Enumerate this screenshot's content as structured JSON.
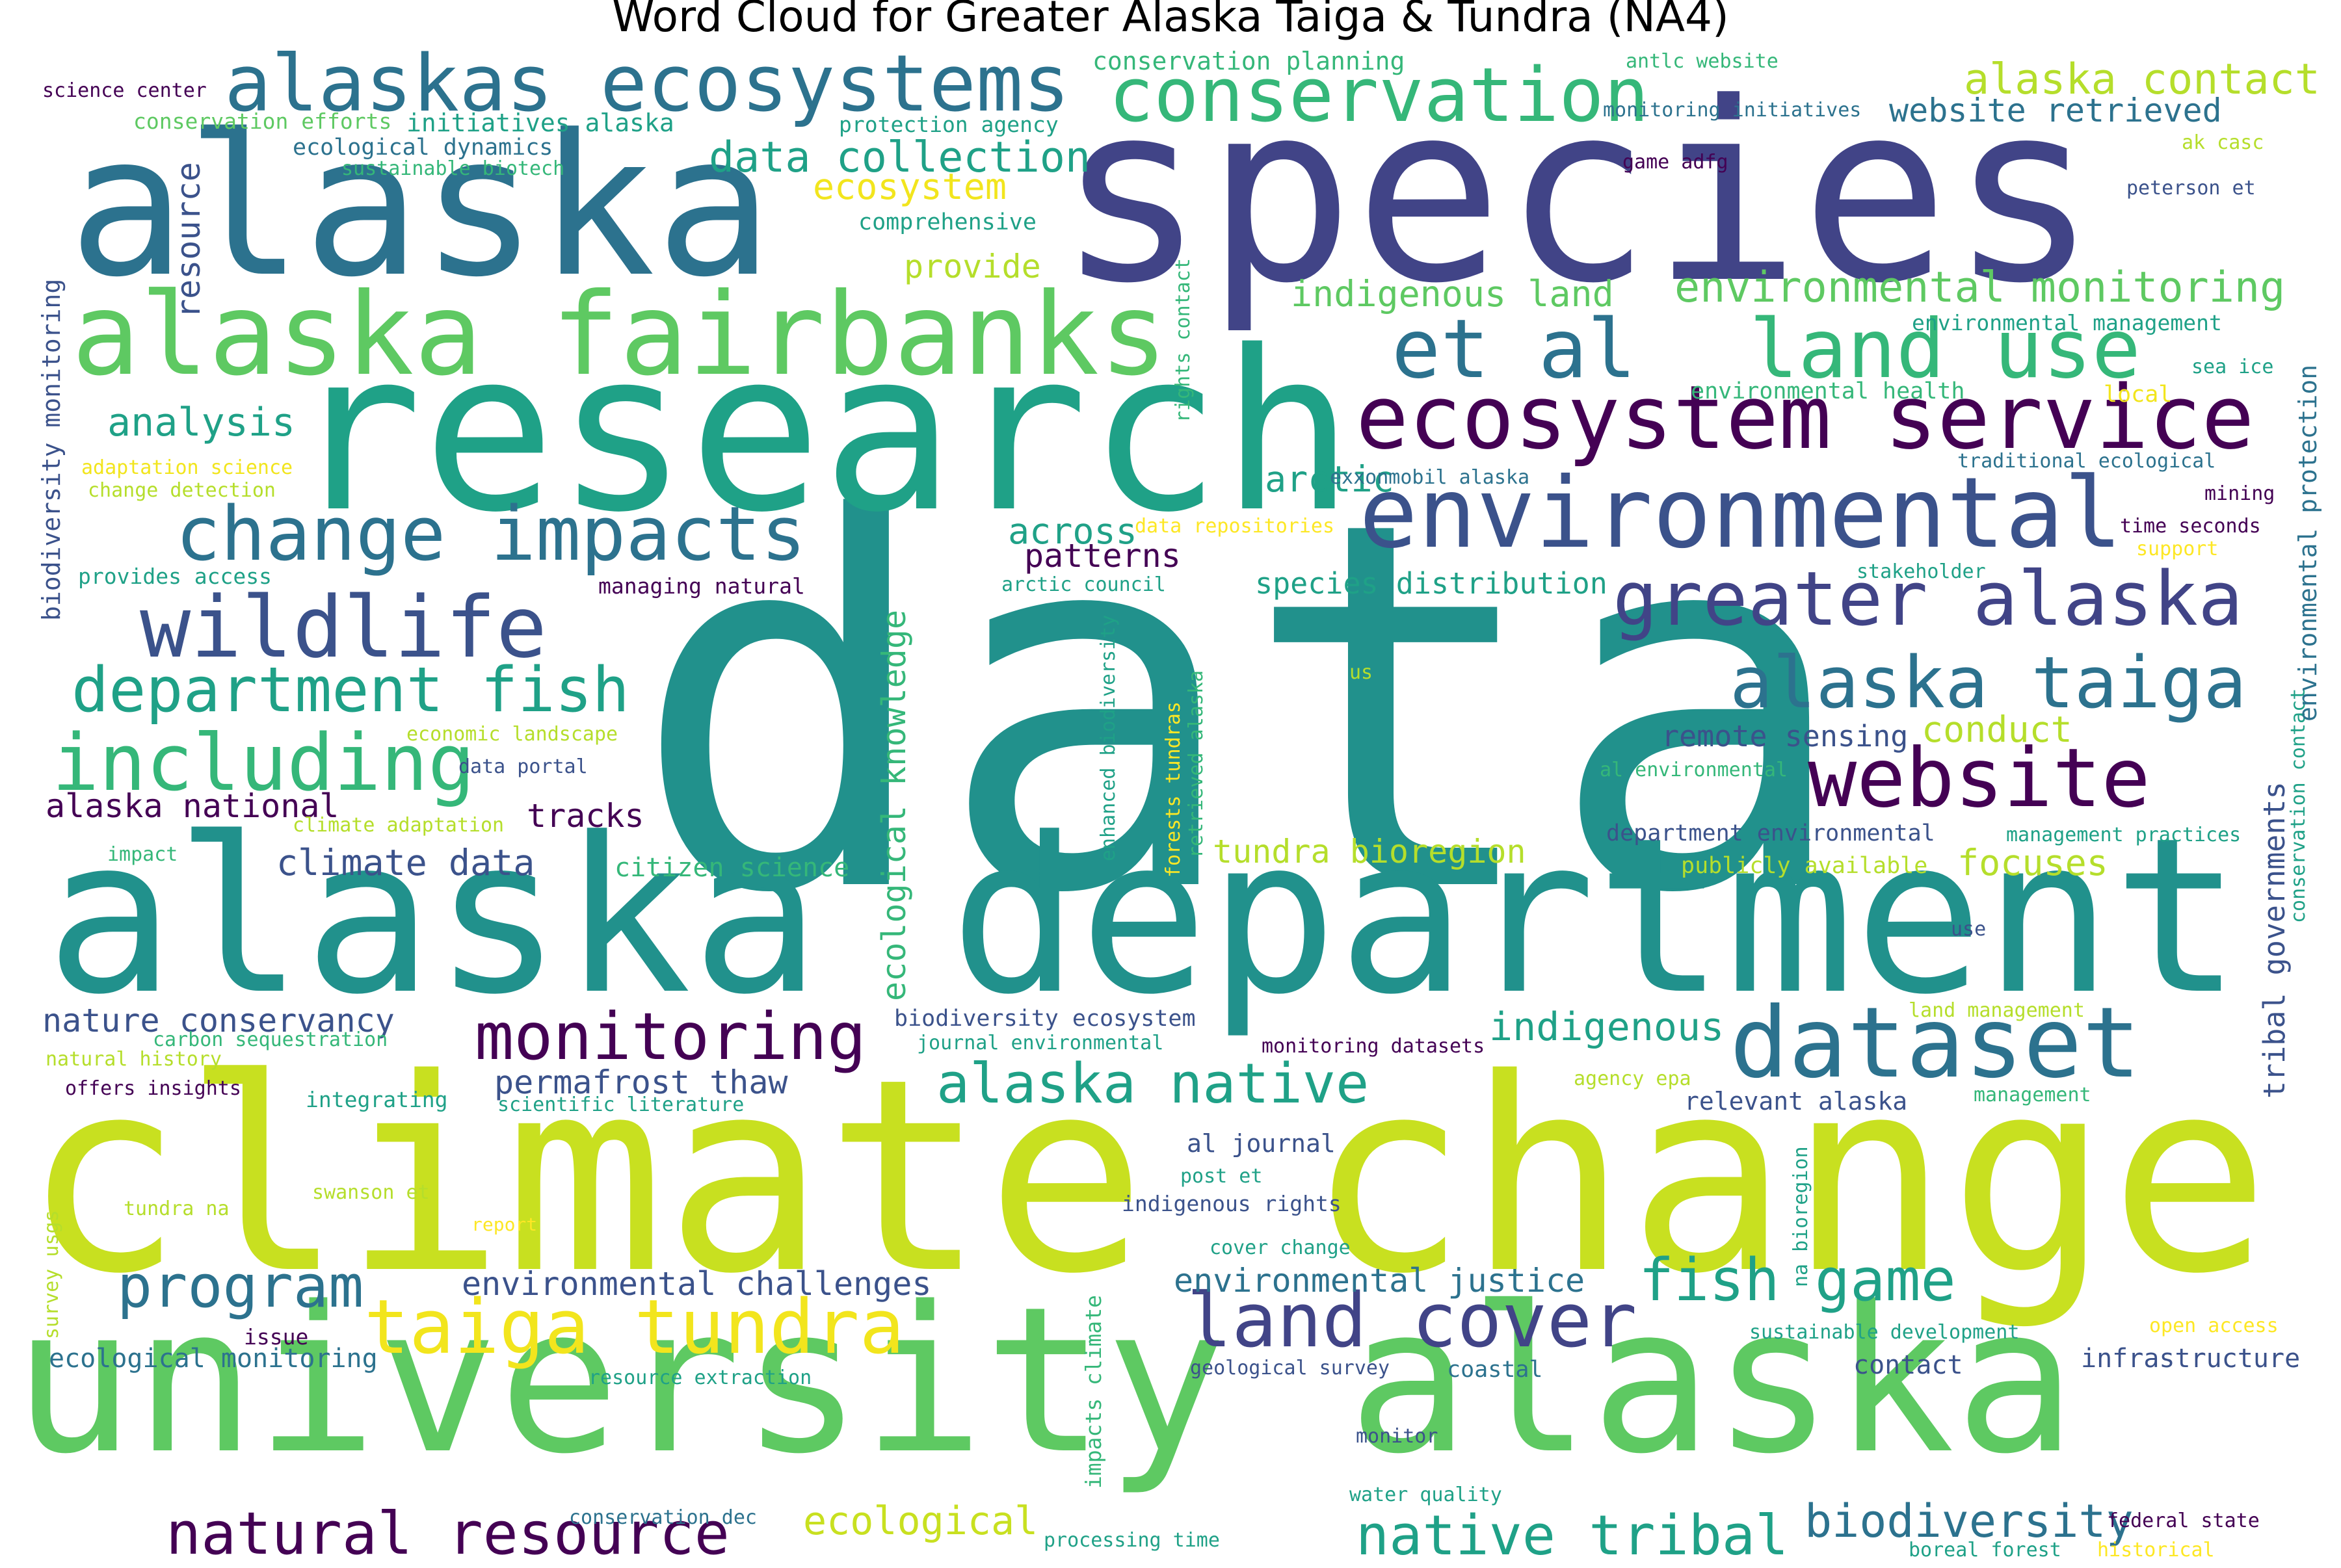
{
  "title": "Word Cloud for Greater Alaska Taiga & Tundra (NA4)",
  "palette": {
    "dark_purple": "#440154",
    "indigo": "#414487",
    "blue": "#3b528b",
    "steel_blue": "#2c728e",
    "teal": "#21918c",
    "green_teal": "#1fa187",
    "green": "#35b779",
    "light_green": "#5ec962",
    "yellow_green": "#b5de2b",
    "lime": "#c8e020",
    "yellow": "#f2e51d",
    "bright_yellow": "#fde725"
  },
  "words": [
    {
      "id": "data",
      "text": "data"
    },
    {
      "id": "climate-change",
      "text": "climate change"
    },
    {
      "id": "species",
      "text": "species"
    },
    {
      "id": "research",
      "text": "research"
    },
    {
      "id": "alaska-department",
      "text": "alaska department"
    },
    {
      "id": "university-alaska",
      "text": "university alaska"
    },
    {
      "id": "alaska",
      "text": "alaska"
    },
    {
      "id": "alaska-fairbanks",
      "text": "alaska fairbanks"
    },
    {
      "id": "alaskas-ecosystems",
      "text": "alaskas ecosystems"
    },
    {
      "id": "conservation",
      "text": "conservation"
    },
    {
      "id": "environmental",
      "text": "environmental"
    },
    {
      "id": "ecosystem-service",
      "text": "ecosystem service"
    },
    {
      "id": "et-al",
      "text": "et al"
    },
    {
      "id": "land-use",
      "text": "land use"
    },
    {
      "id": "wildlife",
      "text": "wildlife"
    },
    {
      "id": "change-impacts",
      "text": "change impacts"
    },
    {
      "id": "greater-alaska",
      "text": "greater alaska"
    },
    {
      "id": "alaska-taiga",
      "text": "alaska taiga"
    },
    {
      "id": "website",
      "text": "website"
    },
    {
      "id": "dataset",
      "text": "dataset"
    },
    {
      "id": "department-fish",
      "text": "department fish"
    },
    {
      "id": "including",
      "text": "including"
    },
    {
      "id": "monitoring",
      "text": "monitoring"
    },
    {
      "id": "taiga-tundra",
      "text": "taiga tundra"
    },
    {
      "id": "land-cover",
      "text": "land cover"
    },
    {
      "id": "alaska-native",
      "text": "alaska native"
    },
    {
      "id": "fish-game",
      "text": "fish game"
    },
    {
      "id": "program",
      "text": "program"
    },
    {
      "id": "natural-resource",
      "text": "natural resource"
    },
    {
      "id": "native-tribal",
      "text": "native tribal"
    },
    {
      "id": "biodiversity",
      "text": "biodiversity"
    },
    {
      "id": "ecological",
      "text": "ecological"
    },
    {
      "id": "environmental-monitoring",
      "text": "environmental monitoring"
    },
    {
      "id": "data-collection",
      "text": "data collection"
    },
    {
      "id": "alaska-contact",
      "text": "alaska contact"
    },
    {
      "id": "website-retrieved",
      "text": "website retrieved"
    },
    {
      "id": "ecosystem",
      "text": "ecosystem"
    },
    {
      "id": "indigenous-land",
      "text": "indigenous land"
    },
    {
      "id": "provide",
      "text": "provide"
    },
    {
      "id": "analysis",
      "text": "analysis"
    },
    {
      "id": "arctic",
      "text": "arctic"
    },
    {
      "id": "across",
      "text": "across"
    },
    {
      "id": "patterns",
      "text": "patterns"
    },
    {
      "id": "species-distribution",
      "text": "species distribution"
    },
    {
      "id": "alaska-national",
      "text": "alaska national"
    },
    {
      "id": "tracks",
      "text": "tracks"
    },
    {
      "id": "climate-data",
      "text": "climate data"
    },
    {
      "id": "citizen-science",
      "text": "citizen science"
    },
    {
      "id": "tundra-bioregion",
      "text": "tundra bioregion"
    },
    {
      "id": "focuses",
      "text": "focuses"
    },
    {
      "id": "conduct",
      "text": "conduct"
    },
    {
      "id": "remote-sensing",
      "text": "remote sensing"
    },
    {
      "id": "nature-conservancy",
      "text": "nature conservancy"
    },
    {
      "id": "permafrost-thaw",
      "text": "permafrost thaw"
    },
    {
      "id": "indigenous",
      "text": "indigenous"
    },
    {
      "id": "environmental-challenges",
      "text": "environmental challenges"
    },
    {
      "id": "environmental-justice",
      "text": "environmental justice"
    },
    {
      "id": "infrastructure",
      "text": "infrastructure"
    },
    {
      "id": "contact",
      "text": "contact"
    },
    {
      "id": "coastal",
      "text": "coastal"
    },
    {
      "id": "ecological-monitoring",
      "text": "ecological monitoring"
    },
    {
      "id": "relevant-alaska",
      "text": "relevant alaska"
    },
    {
      "id": "al-journal",
      "text": "al journal"
    },
    {
      "id": "indigenous-rights",
      "text": "indigenous rights"
    },
    {
      "id": "conservation-planning",
      "text": "conservation planning"
    },
    {
      "id": "science-center",
      "text": "science center"
    },
    {
      "id": "conservation-efforts",
      "text": "conservation efforts"
    },
    {
      "id": "initiatives-alaska",
      "text": "initiatives alaska"
    },
    {
      "id": "ecological-dynamics",
      "text": "ecological dynamics"
    },
    {
      "id": "sustainable-biotech",
      "text": "sustainable biotech"
    },
    {
      "id": "protection-agency",
      "text": "protection agency"
    },
    {
      "id": "comprehensive",
      "text": "comprehensive"
    },
    {
      "id": "antlc-website",
      "text": "antlc website"
    },
    {
      "id": "monitoring-initiatives",
      "text": "monitoring initiatives"
    },
    {
      "id": "game-adfg",
      "text": "game adfg"
    },
    {
      "id": "ak-casc",
      "text": "ak casc"
    },
    {
      "id": "peterson-et",
      "text": "peterson et"
    },
    {
      "id": "environmental-management",
      "text": "environmental management"
    },
    {
      "id": "sea-ice",
      "text": "sea ice"
    },
    {
      "id": "environmental-health",
      "text": "environmental health"
    },
    {
      "id": "local",
      "text": "local"
    },
    {
      "id": "traditional-ecological",
      "text": "traditional ecological"
    },
    {
      "id": "mining",
      "text": "mining"
    },
    {
      "id": "time-seconds",
      "text": "time seconds"
    },
    {
      "id": "support",
      "text": "support"
    },
    {
      "id": "stakeholder",
      "text": "stakeholder"
    },
    {
      "id": "exxonmobil-alaska",
      "text": "exxonmobil alaska"
    },
    {
      "id": "data-repositories",
      "text": "data repositories"
    },
    {
      "id": "arctic-council",
      "text": "arctic council"
    },
    {
      "id": "managing-natural",
      "text": "managing natural"
    },
    {
      "id": "provides-access",
      "text": "provides access"
    },
    {
      "id": "adaptation-science",
      "text": "adaptation science"
    },
    {
      "id": "change-detection",
      "text": "change detection"
    },
    {
      "id": "economic-landscape",
      "text": "economic landscape"
    },
    {
      "id": "data-portal",
      "text": "data portal"
    },
    {
      "id": "climate-adaptation",
      "text": "climate adaptation"
    },
    {
      "id": "impact",
      "text": "impact"
    },
    {
      "id": "us",
      "text": "us"
    },
    {
      "id": "al-environmental",
      "text": "al environmental"
    },
    {
      "id": "department-environmental",
      "text": "department environmental"
    },
    {
      "id": "publicly-available",
      "text": "publicly available"
    },
    {
      "id": "management-practices",
      "text": "management practices"
    },
    {
      "id": "use",
      "text": "use"
    },
    {
      "id": "land-management",
      "text": "land management"
    },
    {
      "id": "management",
      "text": "management"
    },
    {
      "id": "biodiversity-ecosystem",
      "text": "biodiversity ecosystem"
    },
    {
      "id": "journal-environmental",
      "text": "journal environmental"
    },
    {
      "id": "monitoring-datasets",
      "text": "monitoring datasets"
    },
    {
      "id": "carbon-sequestration",
      "text": "carbon sequestration"
    },
    {
      "id": "natural-history",
      "text": "natural history"
    },
    {
      "id": "offers-insights",
      "text": "offers insights"
    },
    {
      "id": "integrating",
      "text": "integrating"
    },
    {
      "id": "scientific-literature",
      "text": "scientific literature"
    },
    {
      "id": "agency-epa",
      "text": "agency epa"
    },
    {
      "id": "post-et",
      "text": "post et"
    },
    {
      "id": "swanson-et",
      "text": "swanson et"
    },
    {
      "id": "tundra-na",
      "text": "tundra na"
    },
    {
      "id": "report",
      "text": "report"
    },
    {
      "id": "cover-change",
      "text": "cover change"
    },
    {
      "id": "issue",
      "text": "issue"
    },
    {
      "id": "resource-extraction",
      "text": "resource extraction"
    },
    {
      "id": "geological-survey",
      "text": "geological survey"
    },
    {
      "id": "sustainable-development",
      "text": "sustainable development"
    },
    {
      "id": "open-access",
      "text": "open access"
    },
    {
      "id": "monitor",
      "text": "monitor"
    },
    {
      "id": "water-quality",
      "text": "water quality"
    },
    {
      "id": "conservation-dec",
      "text": "conservation dec"
    },
    {
      "id": "processing-time",
      "text": "processing time"
    },
    {
      "id": "federal-state",
      "text": "federal state"
    },
    {
      "id": "boreal-forest",
      "text": "boreal forest"
    },
    {
      "id": "historical",
      "text": "historical"
    },
    {
      "id": "resource",
      "text": "resource"
    },
    {
      "id": "biodiversity-monitoring",
      "text": "biodiversity monitoring"
    },
    {
      "id": "rights-contact",
      "text": "rights contact"
    },
    {
      "id": "ecological-knowledge",
      "text": "ecological knowledge"
    },
    {
      "id": "enhanced-biodiversity",
      "text": "enhanced biodiversity"
    },
    {
      "id": "forests-tundras",
      "text": "forests tundras"
    },
    {
      "id": "retrieved-alaska",
      "text": "retrieved alaska"
    },
    {
      "id": "tribal-governments",
      "text": "tribal governments"
    },
    {
      "id": "conservation-contact",
      "text": "conservation contact"
    },
    {
      "id": "environmental-protection",
      "text": "environmental protection"
    },
    {
      "id": "na-bioregion",
      "text": "na bioregion"
    },
    {
      "id": "impacts-climate",
      "text": "impacts climate"
    },
    {
      "id": "survey-usgs",
      "text": "survey usgs"
    }
  ]
}
